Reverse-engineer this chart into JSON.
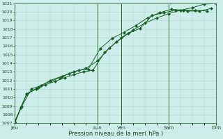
{
  "title": "",
  "xlabel": "Pression niveau de la mer( hPa )",
  "ylim": [
    1007,
    1021
  ],
  "yticks": [
    1007,
    1008,
    1009,
    1010,
    1011,
    1012,
    1013,
    1014,
    1015,
    1016,
    1017,
    1018,
    1019,
    1020,
    1021
  ],
  "bg_color": "#cceee8",
  "grid_color": "#aad8cc",
  "line_color": "#1a5c2a",
  "marker_color": "#1a5c2a",
  "day_labels": [
    "Jeu",
    "Lun",
    "Ven",
    "Sam",
    "Dim"
  ],
  "day_positions": [
    0,
    3.5,
    4.5,
    6.5,
    8.5
  ],
  "vline_positions": [
    0,
    3.5,
    4.5,
    6.5,
    8.5
  ],
  "xlim": [
    0,
    8.5
  ],
  "series1_x": [
    0,
    0.25,
    0.5,
    0.9,
    1.3,
    1.7,
    2.1,
    2.5,
    2.9,
    3.3,
    3.8,
    4.3,
    4.8,
    5.3,
    5.8,
    6.3,
    6.8,
    7.3,
    7.8,
    8.3
  ],
  "series1_y": [
    1007.0,
    1008.8,
    1010.4,
    1011.0,
    1011.5,
    1011.9,
    1012.3,
    1012.7,
    1013.0,
    1013.2,
    1015.3,
    1016.5,
    1017.5,
    1018.1,
    1019.6,
    1019.9,
    1020.2,
    1020.1,
    1020.1,
    1020.4
  ],
  "series2_x": [
    0,
    0.3,
    0.7,
    1.1,
    1.5,
    1.9,
    2.3,
    2.7,
    3.1,
    3.6,
    4.1,
    4.6,
    5.1,
    5.6,
    6.1,
    6.6,
    7.1,
    7.6,
    8.1
  ],
  "series2_y": [
    1007.1,
    1009.0,
    1011.0,
    1011.4,
    1011.9,
    1012.3,
    1012.8,
    1013.2,
    1013.3,
    1015.7,
    1016.9,
    1017.6,
    1018.4,
    1019.3,
    1019.9,
    1020.3,
    1020.2,
    1020.2,
    1020.1
  ],
  "series3_x": [
    0,
    0.5,
    1.0,
    1.5,
    2.0,
    2.5,
    3.0,
    3.5,
    4.0,
    4.5,
    5.0,
    5.5,
    6.0,
    6.5,
    7.0,
    7.5,
    8.0,
    8.5
  ],
  "series3_y": [
    1007.2,
    1010.4,
    1011.2,
    1012.0,
    1012.5,
    1013.0,
    1013.4,
    1014.3,
    1015.8,
    1017.0,
    1017.9,
    1018.7,
    1019.3,
    1019.8,
    1020.2,
    1020.5,
    1020.9,
    1021.0
  ]
}
